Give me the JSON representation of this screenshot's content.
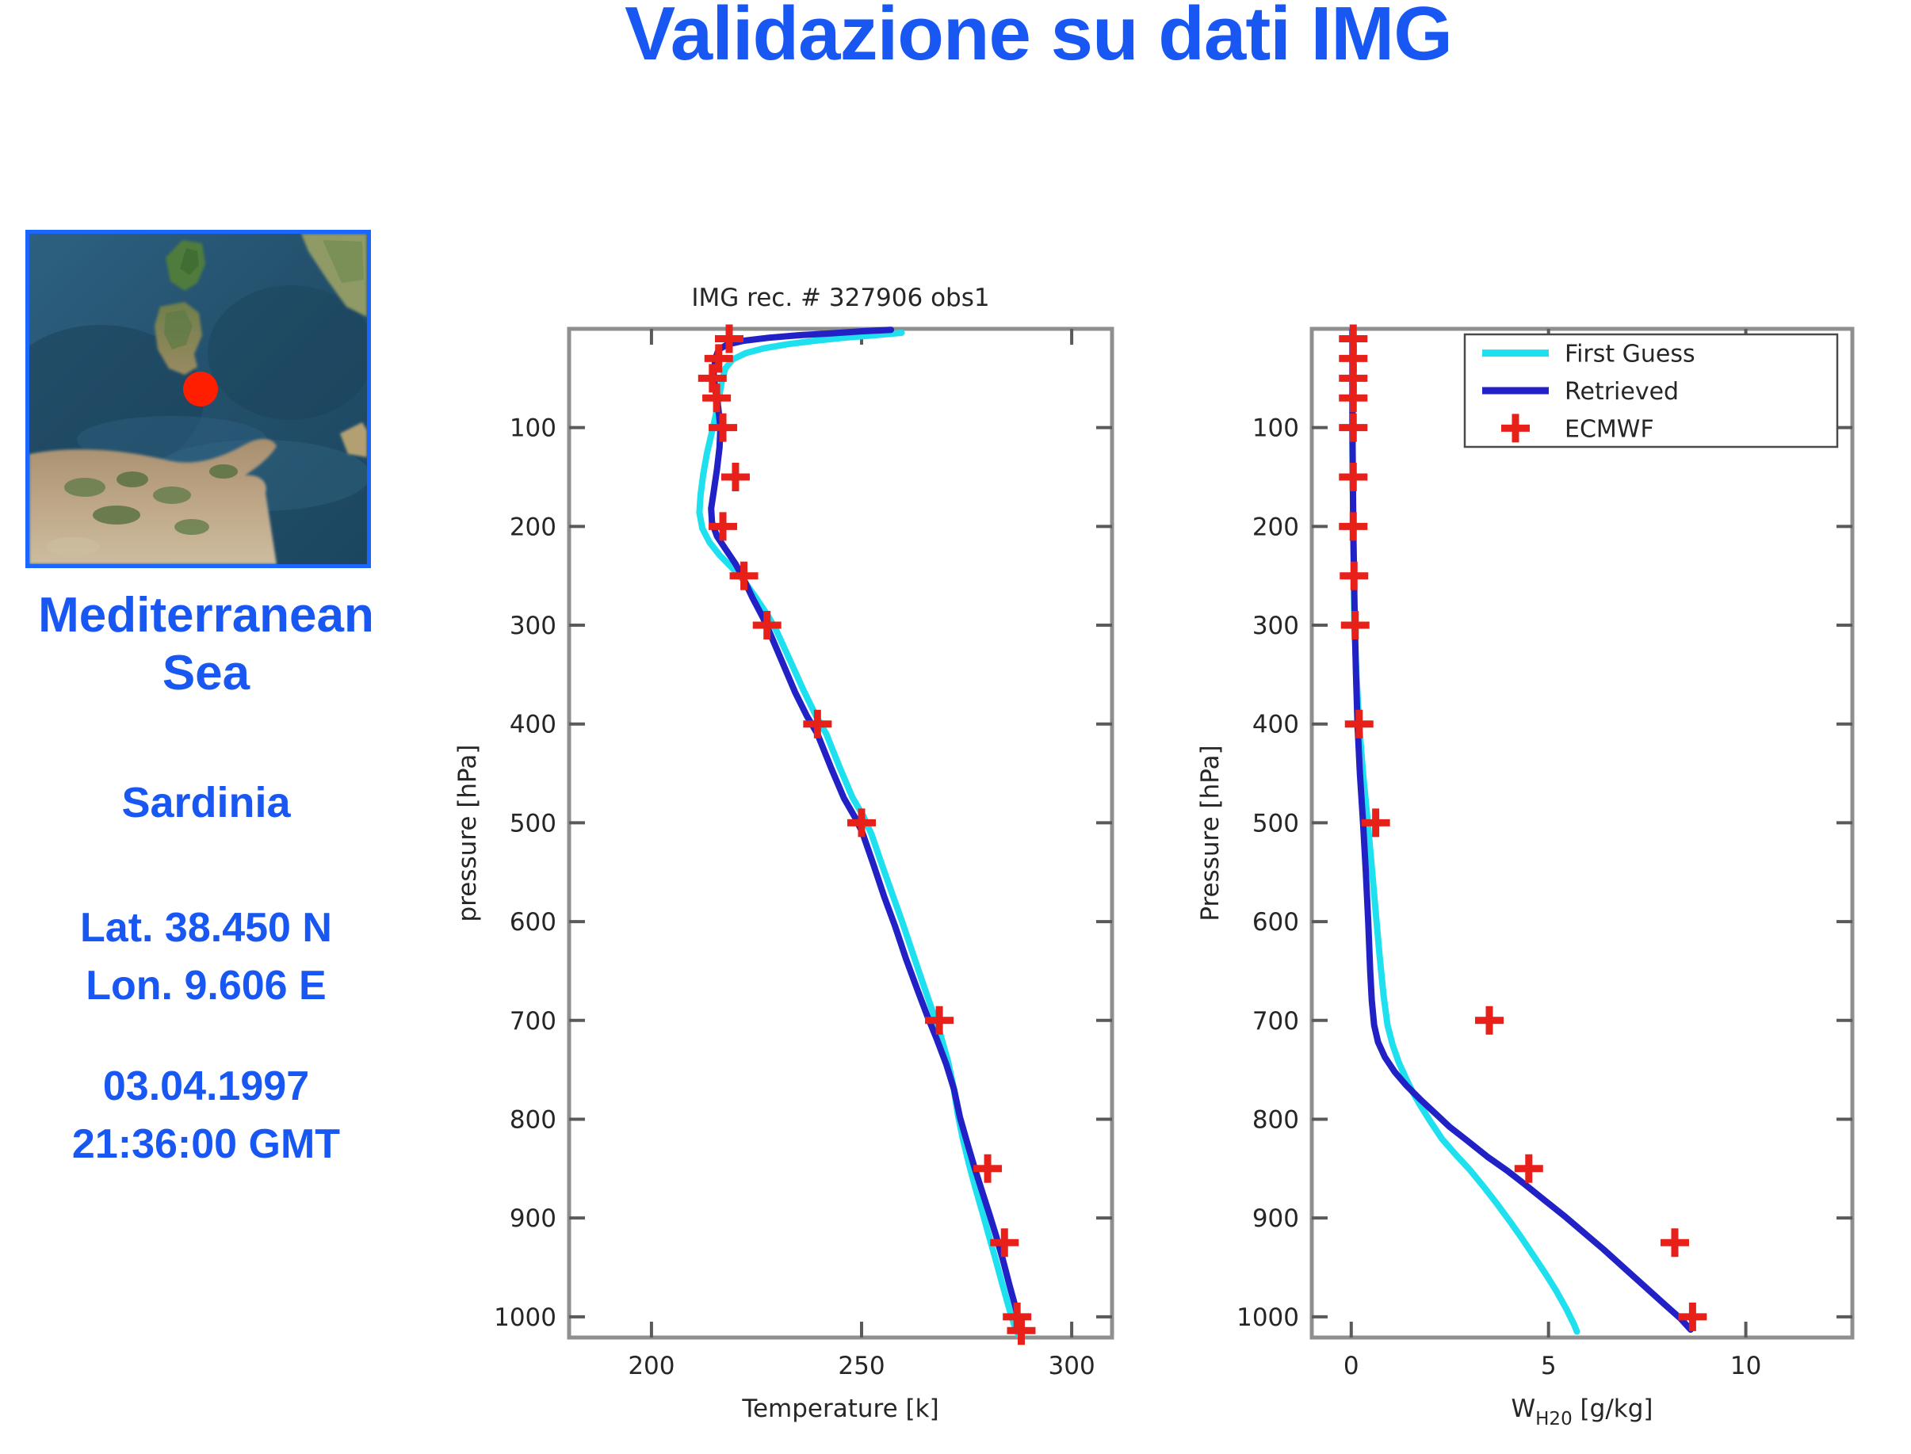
{
  "page_title": "Validazione su dati IMG",
  "location": {
    "region_line1": "Mediterranean",
    "region_line2": "Sea",
    "island": "Sardinia",
    "latitude": "Lat. 38.450 N",
    "longitude": "Lon. 9.606 E",
    "date": "03.04.1997",
    "time": "21:36:00 GMT"
  },
  "colors": {
    "accent_blue": "#1857f2",
    "first_guess_cyan": "#1fe0ee",
    "retrieved_blue": "#2121c6",
    "ecmwf_red": "#e7211a",
    "map_border_blue": "#1a66ff",
    "marker_dot_red": "#ff1f00",
    "plot_frame_gray": "#8f8f8f",
    "plot_text": "#262626"
  },
  "chart_data": [
    {
      "type": "line",
      "id": "temperature-profile",
      "title": "IMG rec. # 327906 obs1",
      "xlabel_parts": [
        {
          "text": "Temperature [k]"
        }
      ],
      "ylabel": "pressure [hPa]",
      "xlim": [
        180.4,
        309.6
      ],
      "ylim": [
        1021,
        0
      ],
      "xticks": [
        200,
        250,
        300
      ],
      "yticks": [
        100,
        200,
        300,
        400,
        500,
        600,
        700,
        800,
        900,
        1000
      ],
      "grid": false,
      "legend": false,
      "series": [
        {
          "name": "First Guess",
          "color": "#1fe0ee",
          "width": 8,
          "points": [
            [
              259.5,
              4
            ],
            [
              253,
              6.5
            ],
            [
              246,
              9
            ],
            [
              239,
              12
            ],
            [
              232.5,
              15.5
            ],
            [
              227,
              19.5
            ],
            [
              222.5,
              24.5
            ],
            [
              219.3,
              31
            ],
            [
              217.6,
              40
            ],
            [
              216.8,
              52
            ],
            [
              216.3,
              64
            ],
            [
              215.6,
              82
            ],
            [
              214.4,
              104
            ],
            [
              213.2,
              126
            ],
            [
              212.3,
              148
            ],
            [
              211.7,
              168
            ],
            [
              211.4,
              186
            ],
            [
              212.1,
              202
            ],
            [
              213.8,
              216
            ],
            [
              216.2,
              229
            ],
            [
              219.2,
              242
            ],
            [
              222,
              255
            ],
            [
              225,
              273
            ],
            [
              227.8,
              291
            ],
            [
              229.8,
              306
            ],
            [
              233,
              336
            ],
            [
              236.2,
              366
            ],
            [
              239.2,
              392
            ],
            [
              241.6,
              410
            ],
            [
              244.8,
              444
            ],
            [
              247.8,
              474
            ],
            [
              250.5,
              494
            ],
            [
              252.4,
              512
            ],
            [
              254.8,
              542
            ],
            [
              257.3,
              572
            ],
            [
              259.8,
              602
            ],
            [
              262.4,
              635
            ],
            [
              264.8,
              665
            ],
            [
              267,
              692
            ],
            [
              268.8,
              715
            ],
            [
              270.6,
              742
            ],
            [
              271.9,
              768
            ],
            [
              272.9,
              795
            ],
            [
              274.1,
              820
            ],
            [
              275.6,
              846
            ],
            [
              277.1,
              870
            ],
            [
              278.8,
              895
            ],
            [
              280.3,
              918
            ],
            [
              281.9,
              942
            ],
            [
              283.5,
              967
            ],
            [
              285,
              990
            ],
            [
              286.3,
              1008
            ],
            [
              287.3,
              1018
            ]
          ]
        },
        {
          "name": "Retrieved",
          "color": "#2121c6",
          "width": 8,
          "points": [
            [
              257,
              1
            ],
            [
              250,
              2.5
            ],
            [
              243,
              4.5
            ],
            [
              235,
              6.5
            ],
            [
              228,
              9
            ],
            [
              222,
              12
            ],
            [
              218,
              16
            ],
            [
              216,
              21
            ],
            [
              215.2,
              30
            ],
            [
              214.8,
              45
            ],
            [
              215.2,
              62
            ],
            [
              215.9,
              80
            ],
            [
              216.4,
              100
            ],
            [
              216.2,
              120
            ],
            [
              215.6,
              142
            ],
            [
              214.8,
              165
            ],
            [
              214.2,
              182
            ],
            [
              214.4,
              196
            ],
            [
              215.6,
              210
            ],
            [
              217.8,
              224
            ],
            [
              220,
              238
            ],
            [
              221.8,
              252
            ],
            [
              224,
              272
            ],
            [
              226.5,
              292
            ],
            [
              228.2,
              308
            ],
            [
              231.2,
              338
            ],
            [
              234.2,
              368
            ],
            [
              237,
              392
            ],
            [
              239.5,
              410
            ],
            [
              242.8,
              445
            ],
            [
              245.8,
              475
            ],
            [
              248.5,
              495
            ],
            [
              250.2,
              510
            ],
            [
              252.8,
              542
            ],
            [
              255.4,
              575
            ],
            [
              258,
              605
            ],
            [
              260.6,
              638
            ],
            [
              263.2,
              668
            ],
            [
              265.6,
              695
            ],
            [
              267.8,
              718
            ],
            [
              270.2,
              745
            ],
            [
              272,
              770
            ],
            [
              273.4,
              798
            ],
            [
              275,
              822
            ],
            [
              276.8,
              848
            ],
            [
              278.6,
              872
            ],
            [
              280.4,
              896
            ],
            [
              282,
              918
            ],
            [
              283.6,
              942
            ],
            [
              285.2,
              968
            ],
            [
              286.6,
              990
            ],
            [
              287.6,
              1008
            ],
            [
              288.1,
              1018
            ]
          ]
        }
      ],
      "markers": {
        "name": "ECMWF",
        "color": "#e7211a",
        "points": [
          [
            218.5,
            10
          ],
          [
            216,
            30
          ],
          [
            214.5,
            50
          ],
          [
            215.5,
            70
          ],
          [
            217,
            100
          ],
          [
            220,
            150
          ],
          [
            217,
            200
          ],
          [
            222,
            250
          ],
          [
            227.5,
            300
          ],
          [
            239.5,
            400
          ],
          [
            250,
            500
          ],
          [
            268.5,
            700
          ],
          [
            280,
            850
          ],
          [
            284,
            925
          ],
          [
            287,
            1000
          ],
          [
            288,
            1014
          ]
        ]
      }
    },
    {
      "type": "line",
      "id": "water-vapor-profile",
      "title": "",
      "xlabel_parts": [
        {
          "text": "W"
        },
        {
          "text": "H20",
          "sub": true
        },
        {
          "text": " [g/kg]"
        }
      ],
      "ylabel": "Pressure [hPa]",
      "xlim": [
        -1,
        12.7
      ],
      "ylim": [
        1021,
        0
      ],
      "xticks": [
        0,
        5,
        10
      ],
      "yticks": [
        100,
        200,
        300,
        400,
        500,
        600,
        700,
        800,
        900,
        1000
      ],
      "grid": false,
      "legend": true,
      "series": [
        {
          "name": "First Guess",
          "color": "#1fe0ee",
          "width": 8,
          "points": [
            [
              0.03,
              1
            ],
            [
              0.03,
              60
            ],
            [
              0.03,
              120
            ],
            [
              0.05,
              200
            ],
            [
              0.08,
              300
            ],
            [
              0.13,
              350
            ],
            [
              0.2,
              400
            ],
            [
              0.3,
              450
            ],
            [
              0.42,
              500
            ],
            [
              0.52,
              545
            ],
            [
              0.62,
              590
            ],
            [
              0.72,
              635
            ],
            [
              0.82,
              675
            ],
            [
              0.92,
              705
            ],
            [
              1.05,
              725
            ],
            [
              1.2,
              742
            ],
            [
              1.38,
              758
            ],
            [
              1.55,
              772
            ],
            [
              1.75,
              786
            ],
            [
              2,
              802
            ],
            [
              2.3,
              820
            ],
            [
              2.65,
              836
            ],
            [
              3,
              851
            ],
            [
              3.35,
              868
            ],
            [
              3.7,
              886
            ],
            [
              4.05,
              905
            ],
            [
              4.35,
              922
            ],
            [
              4.65,
              940
            ],
            [
              4.95,
              958
            ],
            [
              5.2,
              974
            ],
            [
              5.45,
              992
            ],
            [
              5.65,
              1008
            ],
            [
              5.72,
              1015
            ]
          ]
        },
        {
          "name": "Retrieved",
          "color": "#2121c6",
          "width": 8,
          "points": [
            [
              0.03,
              1
            ],
            [
              0.03,
              50
            ],
            [
              0.03,
              100
            ],
            [
              0.04,
              150
            ],
            [
              0.05,
              200
            ],
            [
              0.07,
              250
            ],
            [
              0.09,
              300
            ],
            [
              0.12,
              350
            ],
            [
              0.16,
              400
            ],
            [
              0.22,
              450
            ],
            [
              0.3,
              500
            ],
            [
              0.37,
              550
            ],
            [
              0.43,
              600
            ],
            [
              0.48,
              650
            ],
            [
              0.52,
              680
            ],
            [
              0.58,
              705
            ],
            [
              0.68,
              722
            ],
            [
              0.85,
              737
            ],
            [
              1.1,
              752
            ],
            [
              1.4,
              766
            ],
            [
              1.75,
              780
            ],
            [
              2.1,
              793
            ],
            [
              2.5,
              808
            ],
            [
              2.95,
              822
            ],
            [
              3.45,
              838
            ],
            [
              3.95,
              852
            ],
            [
              4.4,
              866
            ],
            [
              4.9,
              882
            ],
            [
              5.4,
              898
            ],
            [
              5.9,
              915
            ],
            [
              6.4,
              932
            ],
            [
              6.9,
              950
            ],
            [
              7.4,
              968
            ],
            [
              7.9,
              986
            ],
            [
              8.35,
              1002
            ],
            [
              8.6,
              1013
            ]
          ]
        }
      ],
      "markers": {
        "name": "ECMWF",
        "color": "#e7211a",
        "points": [
          [
            0.05,
            10
          ],
          [
            0.05,
            30
          ],
          [
            0.05,
            50
          ],
          [
            0.05,
            70
          ],
          [
            0.05,
            100
          ],
          [
            0.05,
            150
          ],
          [
            0.05,
            200
          ],
          [
            0.07,
            250
          ],
          [
            0.1,
            300
          ],
          [
            0.2,
            400
          ],
          [
            0.62,
            500
          ],
          [
            3.5,
            700
          ],
          [
            4.5,
            850
          ],
          [
            8.2,
            925
          ],
          [
            8.65,
            1000
          ]
        ]
      }
    }
  ]
}
